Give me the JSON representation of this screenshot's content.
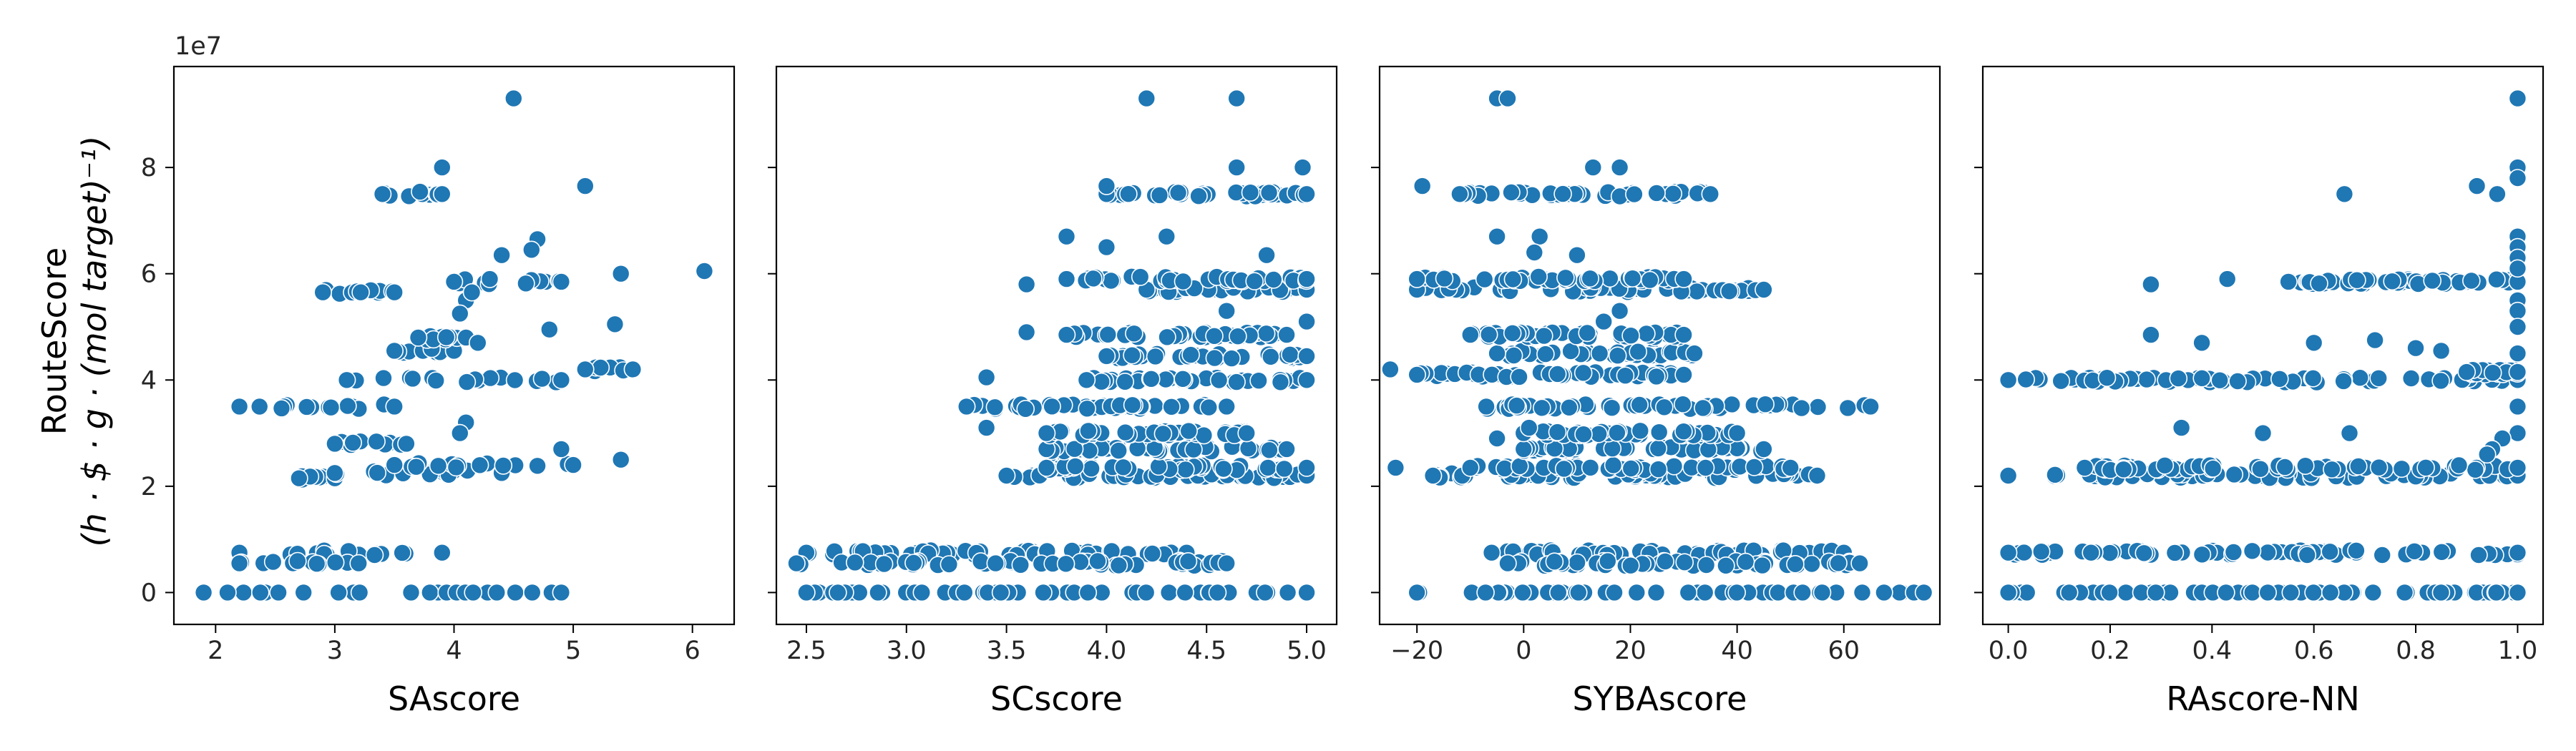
{
  "chart_data": {
    "type": "scatter",
    "marker_color": "#1f77b4",
    "y_label_line1": "RouteScore",
    "y_label_line2": "(h · $ · g · (mol target)⁻¹)",
    "y_offset_text": "1e7",
    "y_scale": 10000000,
    "ylim": [
      -6000000,
      99000000
    ],
    "y_ticks": [
      0,
      2,
      4,
      6,
      8
    ],
    "y_levels": [
      0,
      7500000,
      21000000,
      22000000,
      23000000,
      24000000,
      30000000,
      35000000,
      40000000,
      42000000,
      45000000,
      48000000,
      57000000,
      59000000,
      75000000,
      80000000,
      93000000
    ],
    "panels": [
      {
        "xlabel": "SAscore",
        "xlim": [
          1.65,
          6.35
        ],
        "x_ticks": [
          2,
          3,
          4,
          5,
          6
        ],
        "x_tick_labels": [
          "2",
          "3",
          "4",
          "5",
          "6"
        ],
        "point_count": 190,
        "bands": [
          {
            "y": 0,
            "x_min": 1.9,
            "x_max": 4.9
          },
          {
            "y": 7500000,
            "x_min": 2.2,
            "x_max": 3.9
          },
          {
            "y": 5500000,
            "x_min": 2.2,
            "x_max": 3.2
          },
          {
            "y": 21500000,
            "x_min": 2.7,
            "x_max": 3.0
          },
          {
            "y": 22500000,
            "x_min": 3.0,
            "x_max": 4.4
          },
          {
            "y": 24000000,
            "x_min": 3.5,
            "x_max": 5.0
          },
          {
            "y": 28000000,
            "x_min": 3.0,
            "x_max": 3.6
          },
          {
            "y": 35000000,
            "x_min": 2.2,
            "x_max": 3.5
          },
          {
            "y": 40000000,
            "x_min": 3.1,
            "x_max": 4.9
          },
          {
            "y": 42000000,
            "x_min": 5.1,
            "x_max": 5.5
          },
          {
            "y": 45500000,
            "x_min": 3.5,
            "x_max": 4.0
          },
          {
            "y": 48000000,
            "x_min": 3.7,
            "x_max": 4.1
          },
          {
            "y": 56500000,
            "x_min": 2.9,
            "x_max": 3.5
          },
          {
            "y": 58500000,
            "x_min": 4.0,
            "x_max": 4.9
          },
          {
            "y": 75000000,
            "x_min": 3.4,
            "x_max": 3.9
          }
        ],
        "extra_points": [
          {
            "x": 4.5,
            "y": 93000000
          },
          {
            "x": 3.9,
            "y": 80000000
          },
          {
            "x": 5.1,
            "y": 76500000
          },
          {
            "x": 6.1,
            "y": 60500000
          },
          {
            "x": 5.4,
            "y": 60000000
          },
          {
            "x": 4.7,
            "y": 66500000
          },
          {
            "x": 4.65,
            "y": 64500000
          },
          {
            "x": 4.4,
            "y": 63500000
          },
          {
            "x": 4.3,
            "y": 59000000
          },
          {
            "x": 4.1,
            "y": 55000000
          },
          {
            "x": 4.05,
            "y": 52500000
          },
          {
            "x": 4.15,
            "y": 56500000
          },
          {
            "x": 5.35,
            "y": 50500000
          },
          {
            "x": 4.8,
            "y": 49500000
          },
          {
            "x": 4.2,
            "y": 47000000
          },
          {
            "x": 4.1,
            "y": 32000000
          },
          {
            "x": 4.05,
            "y": 30000000
          },
          {
            "x": 5.4,
            "y": 25000000
          },
          {
            "x": 4.9,
            "y": 27000000
          },
          {
            "x": 2.1,
            "y": 0
          }
        ]
      },
      {
        "xlabel": "SCscore",
        "xlim": [
          2.35,
          5.15
        ],
        "x_ticks": [
          2.5,
          3.0,
          3.5,
          4.0,
          4.5,
          5.0
        ],
        "x_tick_labels": [
          "2.5",
          "3.0",
          "3.5",
          "4.0",
          "4.5",
          "5.0"
        ],
        "point_count": 420,
        "bands": [
          {
            "y": 0,
            "x_min": 2.5,
            "x_max": 5.0
          },
          {
            "y": 7500000,
            "x_min": 2.5,
            "x_max": 4.4
          },
          {
            "y": 5500000,
            "x_min": 2.45,
            "x_max": 4.6
          },
          {
            "y": 22000000,
            "x_min": 3.5,
            "x_max": 5.0
          },
          {
            "y": 23500000,
            "x_min": 3.7,
            "x_max": 5.0
          },
          {
            "y": 27000000,
            "x_min": 3.7,
            "x_max": 4.9
          },
          {
            "y": 30000000,
            "x_min": 3.7,
            "x_max": 4.7
          },
          {
            "y": 35000000,
            "x_min": 3.3,
            "x_max": 4.6
          },
          {
            "y": 40000000,
            "x_min": 3.9,
            "x_max": 5.0
          },
          {
            "y": 44500000,
            "x_min": 4.0,
            "x_max": 5.0
          },
          {
            "y": 48500000,
            "x_min": 3.8,
            "x_max": 4.9
          },
          {
            "y": 57000000,
            "x_min": 4.2,
            "x_max": 5.0
          },
          {
            "y": 59000000,
            "x_min": 3.8,
            "x_max": 5.0
          },
          {
            "y": 75000000,
            "x_min": 4.0,
            "x_max": 5.0
          }
        ],
        "extra_points": [
          {
            "x": 4.2,
            "y": 93000000
          },
          {
            "x": 4.65,
            "y": 93000000
          },
          {
            "x": 4.65,
            "y": 80000000
          },
          {
            "x": 4.98,
            "y": 80000000
          },
          {
            "x": 4.0,
            "y": 76500000
          },
          {
            "x": 3.8,
            "y": 67000000
          },
          {
            "x": 4.3,
            "y": 67000000
          },
          {
            "x": 4.0,
            "y": 65000000
          },
          {
            "x": 4.8,
            "y": 63500000
          },
          {
            "x": 3.6,
            "y": 58000000
          },
          {
            "x": 3.6,
            "y": 49000000
          },
          {
            "x": 3.4,
            "y": 40500000
          },
          {
            "x": 3.4,
            "y": 31000000
          },
          {
            "x": 4.6,
            "y": 53000000
          },
          {
            "x": 5.0,
            "y": 51000000
          }
        ]
      },
      {
        "xlabel": "SYBAscore",
        "xlim": [
          -27,
          78
        ],
        "x_ticks": [
          -20,
          0,
          20,
          40,
          60
        ],
        "x_tick_labels": [
          "−20",
          "0",
          "20",
          "40",
          "60"
        ],
        "point_count": 420,
        "bands": [
          {
            "y": 0,
            "x_min": -20,
            "x_max": 75
          },
          {
            "y": 7500000,
            "x_min": -6,
            "x_max": 60
          },
          {
            "y": 5500000,
            "x_min": -3,
            "x_max": 63
          },
          {
            "y": 22000000,
            "x_min": -17,
            "x_max": 55
          },
          {
            "y": 23500000,
            "x_min": -10,
            "x_max": 50
          },
          {
            "y": 27000000,
            "x_min": 0,
            "x_max": 45
          },
          {
            "y": 30000000,
            "x_min": 0,
            "x_max": 40
          },
          {
            "y": 35000000,
            "x_min": -7,
            "x_max": 65
          },
          {
            "y": 41000000,
            "x_min": -20,
            "x_max": 30
          },
          {
            "y": 45000000,
            "x_min": -5,
            "x_max": 32
          },
          {
            "y": 48500000,
            "x_min": -10,
            "x_max": 30
          },
          {
            "y": 57000000,
            "x_min": -20,
            "x_max": 45
          },
          {
            "y": 59000000,
            "x_min": -20,
            "x_max": 30
          },
          {
            "y": 75000000,
            "x_min": -12,
            "x_max": 35
          }
        ],
        "extra_points": [
          {
            "x": -5,
            "y": 93000000
          },
          {
            "x": -3,
            "y": 93000000
          },
          {
            "x": 13,
            "y": 80000000
          },
          {
            "x": 18,
            "y": 80000000
          },
          {
            "x": -19,
            "y": 76500000
          },
          {
            "x": -5,
            "y": 67000000
          },
          {
            "x": 3,
            "y": 67000000
          },
          {
            "x": 10,
            "y": 63500000
          },
          {
            "x": 2,
            "y": 64000000
          },
          {
            "x": -25,
            "y": 42000000
          },
          {
            "x": -24,
            "y": 23500000
          },
          {
            "x": -5,
            "y": 29000000
          },
          {
            "x": 18,
            "y": 53000000
          },
          {
            "x": 15,
            "y": 51000000
          },
          {
            "x": 1,
            "y": 31000000
          }
        ]
      },
      {
        "xlabel": "RAscore-NN",
        "xlim": [
          -0.05,
          1.05
        ],
        "x_ticks": [
          0.0,
          0.2,
          0.4,
          0.6,
          0.8,
          1.0
        ],
        "x_tick_labels": [
          "0.0",
          "0.2",
          "0.4",
          "0.6",
          "0.8",
          "1.0"
        ],
        "point_count": 260,
        "bands": [
          {
            "y": 0,
            "x_min": 0.0,
            "x_max": 1.0
          },
          {
            "y": 7500000,
            "x_min": 0.0,
            "x_max": 1.0
          },
          {
            "y": 22000000,
            "x_min": 0.0,
            "x_max": 1.0
          },
          {
            "y": 23500000,
            "x_min": 0.15,
            "x_max": 1.0
          },
          {
            "y": 40000000,
            "x_min": 0.0,
            "x_max": 1.0
          },
          {
            "y": 41500000,
            "x_min": 0.9,
            "x_max": 1.0
          },
          {
            "y": 58500000,
            "x_min": 0.55,
            "x_max": 1.0
          }
        ],
        "extra_points": [
          {
            "x": 1.0,
            "y": 93000000
          },
          {
            "x": 1.0,
            "y": 80000000
          },
          {
            "x": 1.0,
            "y": 78000000
          },
          {
            "x": 0.92,
            "y": 76500000
          },
          {
            "x": 0.96,
            "y": 75000000
          },
          {
            "x": 0.66,
            "y": 75000000
          },
          {
            "x": 1.0,
            "y": 67000000
          },
          {
            "x": 1.0,
            "y": 65000000
          },
          {
            "x": 1.0,
            "y": 63000000
          },
          {
            "x": 1.0,
            "y": 61000000
          },
          {
            "x": 1.0,
            "y": 55000000
          },
          {
            "x": 1.0,
            "y": 53000000
          },
          {
            "x": 1.0,
            "y": 50000000
          },
          {
            "x": 1.0,
            "y": 45000000
          },
          {
            "x": 1.0,
            "y": 35000000
          },
          {
            "x": 1.0,
            "y": 30000000
          },
          {
            "x": 0.28,
            "y": 58000000
          },
          {
            "x": 0.43,
            "y": 59000000
          },
          {
            "x": 0.28,
            "y": 48500000
          },
          {
            "x": 0.38,
            "y": 47000000
          },
          {
            "x": 0.34,
            "y": 31000000
          },
          {
            "x": 0.5,
            "y": 30000000
          },
          {
            "x": 0.67,
            "y": 30000000
          },
          {
            "x": 0.8,
            "y": 46000000
          },
          {
            "x": 0.72,
            "y": 47500000
          },
          {
            "x": 0.6,
            "y": 47000000
          },
          {
            "x": 0.85,
            "y": 45500000
          },
          {
            "x": 0.97,
            "y": 29000000
          },
          {
            "x": 0.95,
            "y": 27000000
          },
          {
            "x": 0.94,
            "y": 26000000
          }
        ]
      }
    ]
  }
}
